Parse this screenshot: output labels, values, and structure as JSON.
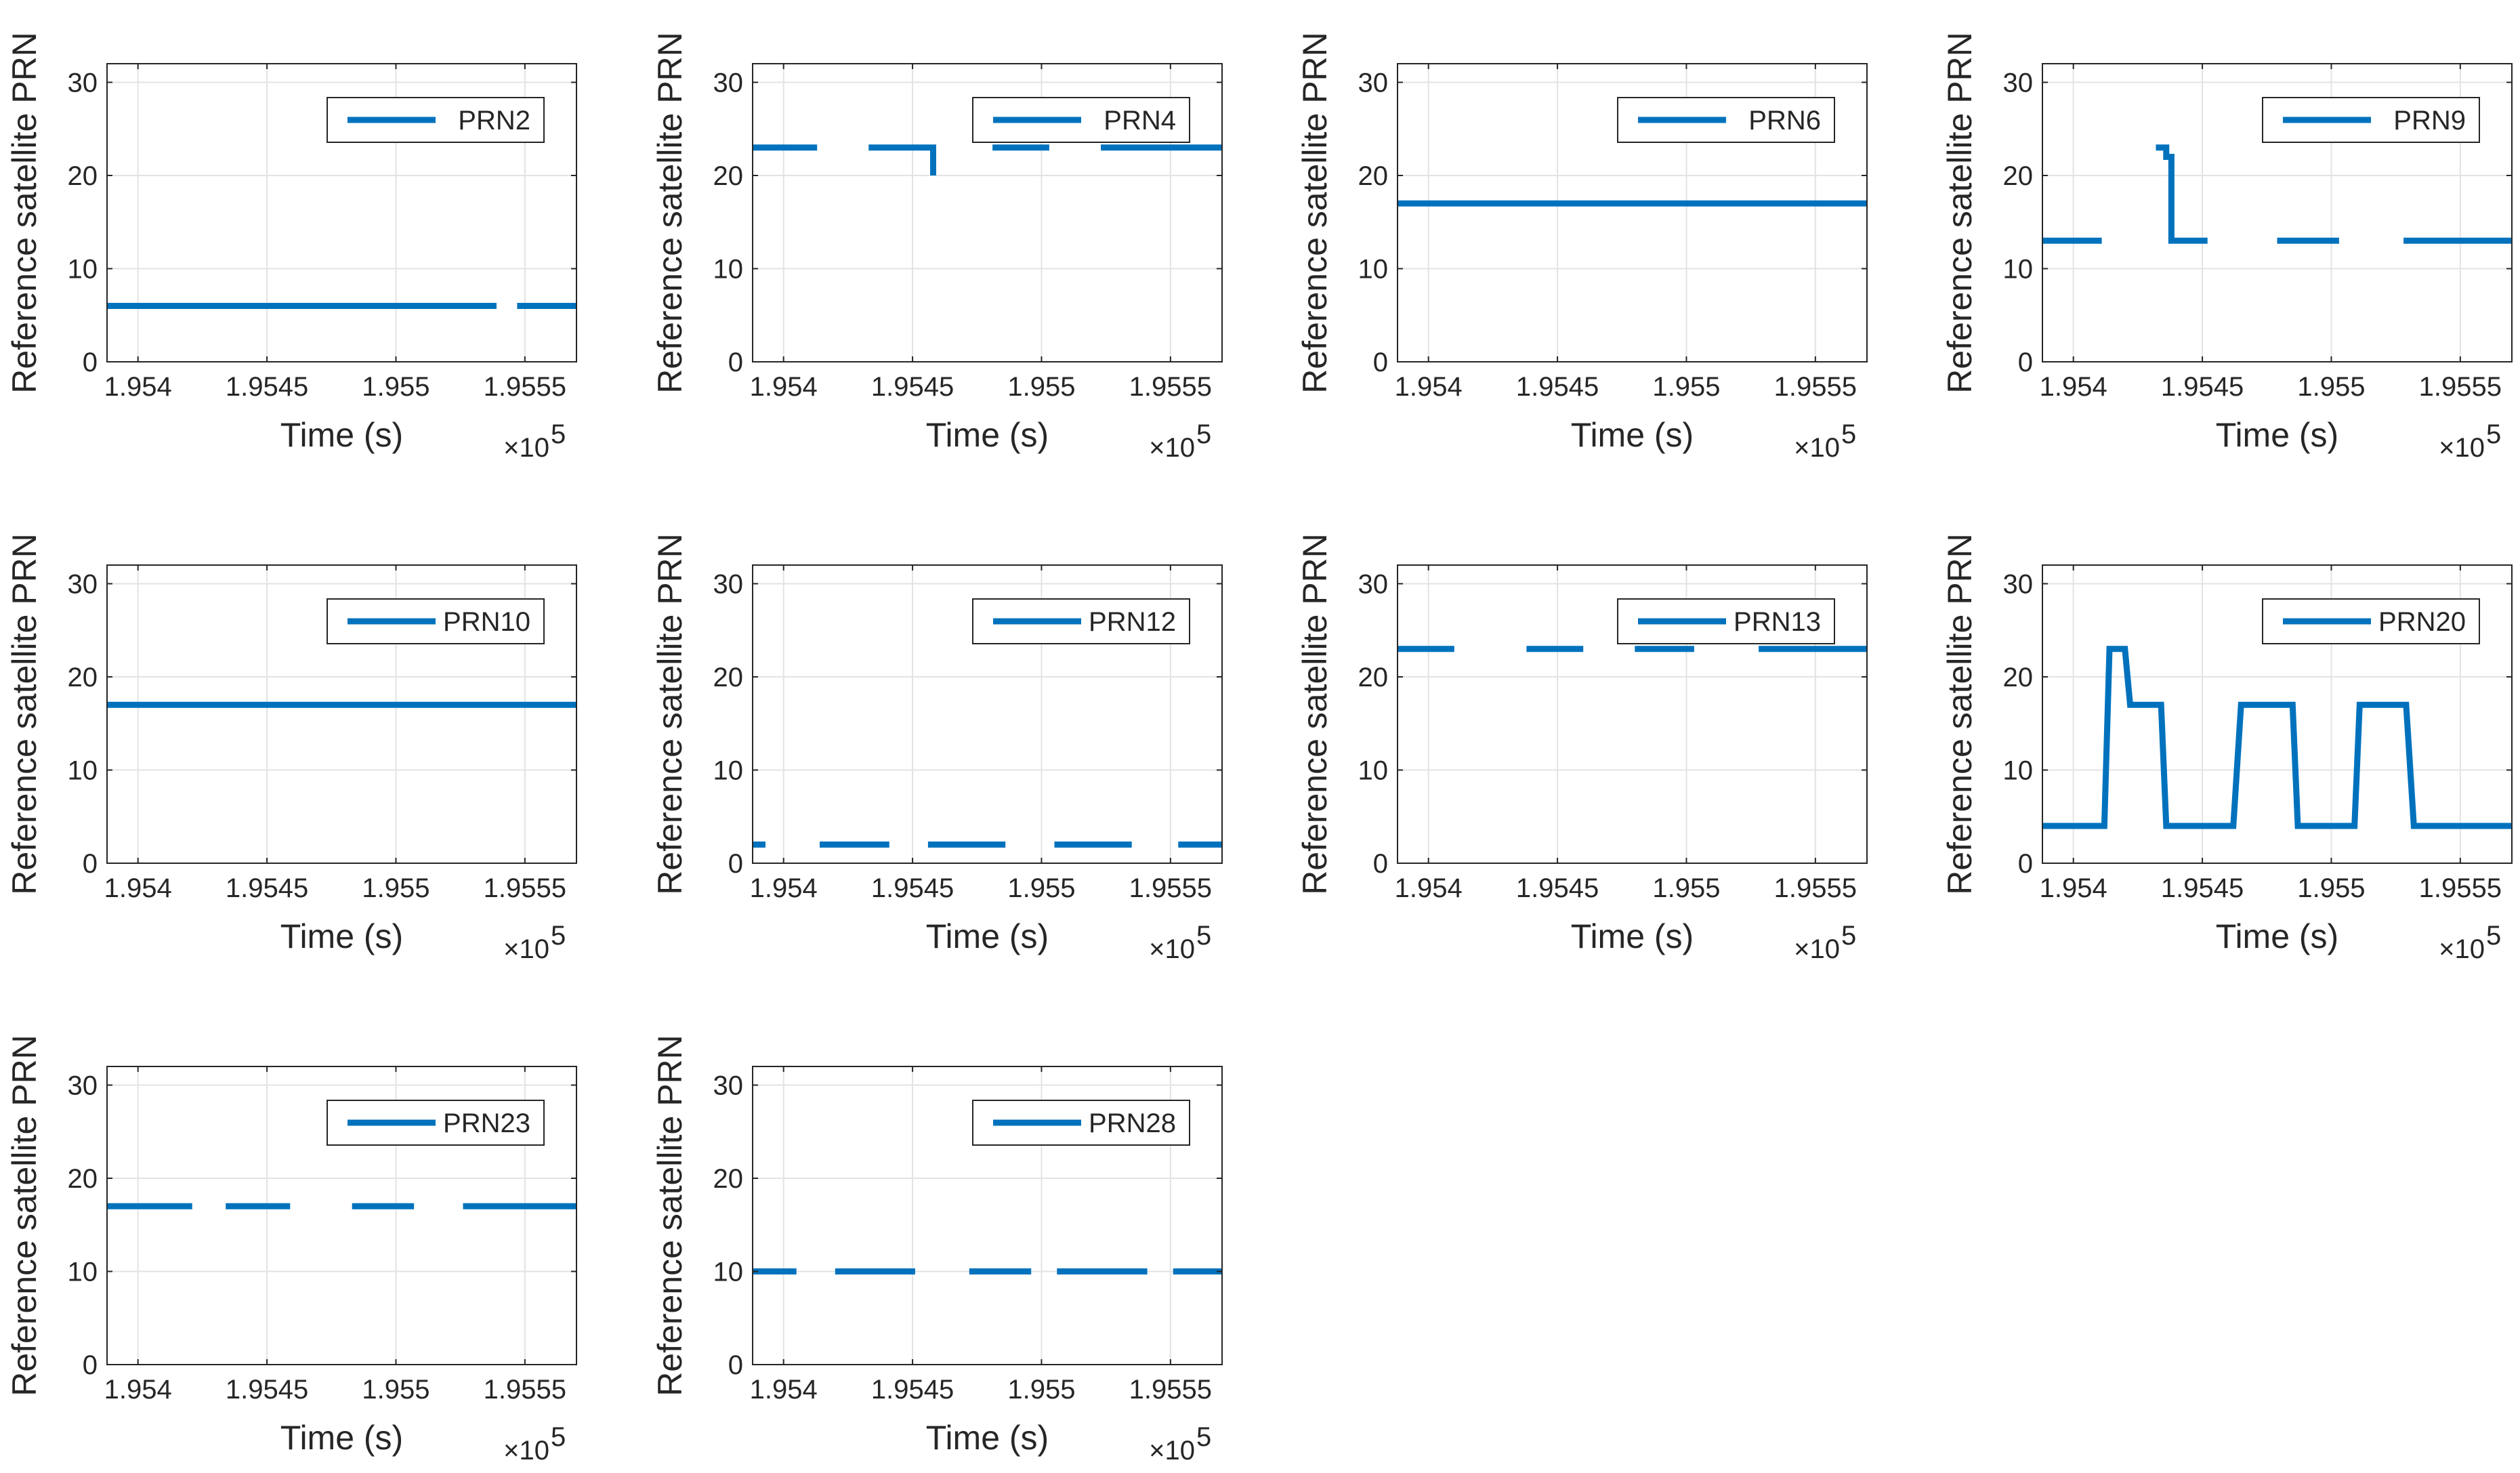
{
  "figure": {
    "series_color": "#0072bd",
    "grid_color": "#e3e3e3",
    "axis_color": "#262626"
  },
  "chart_data": [
    {
      "type": "line",
      "title": "",
      "xlabel": "Time (s)",
      "ylabel": "Reference satellite PRN",
      "xlim": [
        195388,
        195570
      ],
      "ylim": [
        0,
        32
      ],
      "xticks": [
        195400,
        195450,
        195500,
        195550
      ],
      "xtick_labels": [
        "1.954",
        "1.9545",
        "1.955",
        "1.9555"
      ],
      "x_multiplier": "×10",
      "x_multiplier_exp": "5",
      "yticks": [
        0,
        10,
        20,
        30
      ],
      "ytick_labels": [
        "0",
        "10",
        "20",
        "30"
      ],
      "grid": true,
      "legend": "top-right",
      "series": [
        {
          "name": "PRN2",
          "segments": [
            {
              "x": [
                195388,
                195539
              ],
              "y": [
                6,
                6
              ]
            },
            {
              "x": [
                195547,
                195570
              ],
              "y": [
                6,
                6
              ]
            }
          ]
        }
      ]
    },
    {
      "type": "line",
      "title": "",
      "xlabel": "Time (s)",
      "ylabel": "Reference satellite PRN",
      "xlim": [
        195388,
        195570
      ],
      "ylim": [
        0,
        32
      ],
      "xticks": [
        195400,
        195450,
        195500,
        195550
      ],
      "xtick_labels": [
        "1.954",
        "1.9545",
        "1.955",
        "1.9555"
      ],
      "x_multiplier": "×10",
      "x_multiplier_exp": "5",
      "yticks": [
        0,
        10,
        20,
        30
      ],
      "ytick_labels": [
        "0",
        "10",
        "20",
        "30"
      ],
      "grid": true,
      "legend": "top-right",
      "series": [
        {
          "name": "PRN4",
          "segments": [
            {
              "x": [
                195388,
                195413
              ],
              "y": [
                23,
                23
              ]
            },
            {
              "x": [
                195433,
                195458,
                195458
              ],
              "y": [
                23,
                23,
                20
              ]
            },
            {
              "x": [
                195481,
                195503
              ],
              "y": [
                23,
                23
              ]
            },
            {
              "x": [
                195523,
                195570
              ],
              "y": [
                23,
                23
              ]
            }
          ]
        }
      ]
    },
    {
      "type": "line",
      "title": "",
      "xlabel": "Time (s)",
      "ylabel": "Reference satellite PRN",
      "xlim": [
        195388,
        195570
      ],
      "ylim": [
        0,
        32
      ],
      "xticks": [
        195400,
        195450,
        195500,
        195550
      ],
      "xtick_labels": [
        "1.954",
        "1.9545",
        "1.955",
        "1.9555"
      ],
      "x_multiplier": "×10",
      "x_multiplier_exp": "5",
      "yticks": [
        0,
        10,
        20,
        30
      ],
      "ytick_labels": [
        "0",
        "10",
        "20",
        "30"
      ],
      "grid": true,
      "legend": "top-right",
      "series": [
        {
          "name": "PRN6",
          "segments": [
            {
              "x": [
                195388,
                195570
              ],
              "y": [
                17,
                17
              ]
            }
          ]
        }
      ]
    },
    {
      "type": "line",
      "title": "",
      "xlabel": "Time (s)",
      "ylabel": "Reference satellite PRN",
      "xlim": [
        195388,
        195570
      ],
      "ylim": [
        0,
        32
      ],
      "xticks": [
        195400,
        195450,
        195500,
        195550
      ],
      "xtick_labels": [
        "1.954",
        "1.9545",
        "1.955",
        "1.9555"
      ],
      "x_multiplier": "×10",
      "x_multiplier_exp": "5",
      "yticks": [
        0,
        10,
        20,
        30
      ],
      "ytick_labels": [
        "0",
        "10",
        "20",
        "30"
      ],
      "grid": true,
      "legend": "top-right",
      "series": [
        {
          "name": "PRN9",
          "segments": [
            {
              "x": [
                195388,
                195411
              ],
              "y": [
                13,
                13
              ]
            },
            {
              "x": [
                195432,
                195436,
                195436,
                195438,
                195438,
                195452
              ],
              "y": [
                23,
                23,
                22,
                22,
                13,
                13
              ]
            },
            {
              "x": [
                195479,
                195503
              ],
              "y": [
                13,
                13
              ]
            },
            {
              "x": [
                195528,
                195570
              ],
              "y": [
                13,
                13
              ]
            }
          ]
        }
      ]
    },
    {
      "type": "line",
      "title": "",
      "xlabel": "Time (s)",
      "ylabel": "Reference satellite PRN",
      "xlim": [
        195388,
        195570
      ],
      "ylim": [
        0,
        32
      ],
      "xticks": [
        195400,
        195450,
        195500,
        195550
      ],
      "xtick_labels": [
        "1.954",
        "1.9545",
        "1.955",
        "1.9555"
      ],
      "x_multiplier": "×10",
      "x_multiplier_exp": "5",
      "yticks": [
        0,
        10,
        20,
        30
      ],
      "ytick_labels": [
        "0",
        "10",
        "20",
        "30"
      ],
      "grid": true,
      "legend": "top-right",
      "series": [
        {
          "name": "PRN10",
          "segments": [
            {
              "x": [
                195388,
                195570
              ],
              "y": [
                17,
                17
              ]
            }
          ]
        }
      ]
    },
    {
      "type": "line",
      "title": "",
      "xlabel": "Time (s)",
      "ylabel": "Reference satellite PRN",
      "xlim": [
        195388,
        195570
      ],
      "ylim": [
        0,
        32
      ],
      "xticks": [
        195400,
        195450,
        195500,
        195550
      ],
      "xtick_labels": [
        "1.954",
        "1.9545",
        "1.955",
        "1.9555"
      ],
      "x_multiplier": "×10",
      "x_multiplier_exp": "5",
      "yticks": [
        0,
        10,
        20,
        30
      ],
      "ytick_labels": [
        "0",
        "10",
        "20",
        "30"
      ],
      "grid": true,
      "legend": "top-right",
      "series": [
        {
          "name": "PRN12",
          "segments": [
            {
              "x": [
                195388,
                195393
              ],
              "y": [
                2,
                2
              ]
            },
            {
              "x": [
                195414,
                195441
              ],
              "y": [
                2,
                2
              ]
            },
            {
              "x": [
                195456,
                195486
              ],
              "y": [
                2,
                2
              ]
            },
            {
              "x": [
                195505,
                195535
              ],
              "y": [
                2,
                2
              ]
            },
            {
              "x": [
                195553,
                195570
              ],
              "y": [
                2,
                2
              ]
            }
          ]
        }
      ]
    },
    {
      "type": "line",
      "title": "",
      "xlabel": "Time (s)",
      "ylabel": "Reference satellite PRN",
      "xlim": [
        195388,
        195570
      ],
      "ylim": [
        0,
        32
      ],
      "xticks": [
        195400,
        195450,
        195500,
        195550
      ],
      "xtick_labels": [
        "1.954",
        "1.9545",
        "1.955",
        "1.9555"
      ],
      "x_multiplier": "×10",
      "x_multiplier_exp": "5",
      "yticks": [
        0,
        10,
        20,
        30
      ],
      "ytick_labels": [
        "0",
        "10",
        "20",
        "30"
      ],
      "grid": true,
      "legend": "top-right",
      "series": [
        {
          "name": "PRN13",
          "segments": [
            {
              "x": [
                195388,
                195410
              ],
              "y": [
                23,
                23
              ]
            },
            {
              "x": [
                195438,
                195460
              ],
              "y": [
                23,
                23
              ]
            },
            {
              "x": [
                195480,
                195503
              ],
              "y": [
                23,
                23
              ]
            },
            {
              "x": [
                195528,
                195570
              ],
              "y": [
                23,
                23
              ]
            }
          ]
        }
      ]
    },
    {
      "type": "line",
      "title": "",
      "xlabel": "Time (s)",
      "ylabel": "Reference satellite PRN",
      "xlim": [
        195388,
        195570
      ],
      "ylim": [
        0,
        32
      ],
      "xticks": [
        195400,
        195450,
        195500,
        195550
      ],
      "xtick_labels": [
        "1.954",
        "1.9545",
        "1.955",
        "1.9555"
      ],
      "x_multiplier": "×10",
      "x_multiplier_exp": "5",
      "yticks": [
        0,
        10,
        20,
        30
      ],
      "ytick_labels": [
        "0",
        "10",
        "20",
        "30"
      ],
      "grid": true,
      "legend": "top-right",
      "series": [
        {
          "name": "PRN20",
          "segments": [
            {
              "x": [
                195388,
                195412,
                195414,
                195416,
                195420,
                195422,
                195434,
                195436,
                195462,
                195465,
                195485,
                195487,
                195509,
                195511,
                195529,
                195532,
                195570
              ],
              "y": [
                4,
                4,
                23,
                23,
                23,
                17,
                17,
                4,
                4,
                17,
                17,
                4,
                4,
                17,
                17,
                4,
                4
              ]
            }
          ]
        }
      ]
    },
    {
      "type": "line",
      "title": "",
      "xlabel": "Time (s)",
      "ylabel": "Reference satellite PRN",
      "xlim": [
        195388,
        195570
      ],
      "ylim": [
        0,
        32
      ],
      "xticks": [
        195400,
        195450,
        195500,
        195550
      ],
      "xtick_labels": [
        "1.954",
        "1.9545",
        "1.955",
        "1.9555"
      ],
      "x_multiplier": "×10",
      "x_multiplier_exp": "5",
      "yticks": [
        0,
        10,
        20,
        30
      ],
      "ytick_labels": [
        "0",
        "10",
        "20",
        "30"
      ],
      "grid": true,
      "legend": "top-right",
      "series": [
        {
          "name": "PRN23",
          "segments": [
            {
              "x": [
                195388,
                195421
              ],
              "y": [
                17,
                17
              ]
            },
            {
              "x": [
                195434,
                195459
              ],
              "y": [
                17,
                17
              ]
            },
            {
              "x": [
                195483,
                195507
              ],
              "y": [
                17,
                17
              ]
            },
            {
              "x": [
                195526,
                195570
              ],
              "y": [
                17,
                17
              ]
            }
          ]
        }
      ]
    },
    {
      "type": "line",
      "title": "",
      "xlabel": "Time (s)",
      "ylabel": "Reference satellite PRN",
      "xlim": [
        195388,
        195570
      ],
      "ylim": [
        0,
        32
      ],
      "xticks": [
        195400,
        195450,
        195500,
        195550
      ],
      "xtick_labels": [
        "1.954",
        "1.9545",
        "1.955",
        "1.9555"
      ],
      "x_multiplier": "×10",
      "x_multiplier_exp": "5",
      "yticks": [
        0,
        10,
        20,
        30
      ],
      "ytick_labels": [
        "0",
        "10",
        "20",
        "30"
      ],
      "grid": true,
      "legend": "top-right",
      "series": [
        {
          "name": "PRN28",
          "segments": [
            {
              "x": [
                195388,
                195405
              ],
              "y": [
                10,
                10
              ]
            },
            {
              "x": [
                195420,
                195451
              ],
              "y": [
                10,
                10
              ]
            },
            {
              "x": [
                195472,
                195496
              ],
              "y": [
                10,
                10
              ]
            },
            {
              "x": [
                195506,
                195541
              ],
              "y": [
                10,
                10
              ]
            },
            {
              "x": [
                195551,
                195570
              ],
              "y": [
                10,
                10
              ]
            }
          ]
        }
      ]
    }
  ]
}
